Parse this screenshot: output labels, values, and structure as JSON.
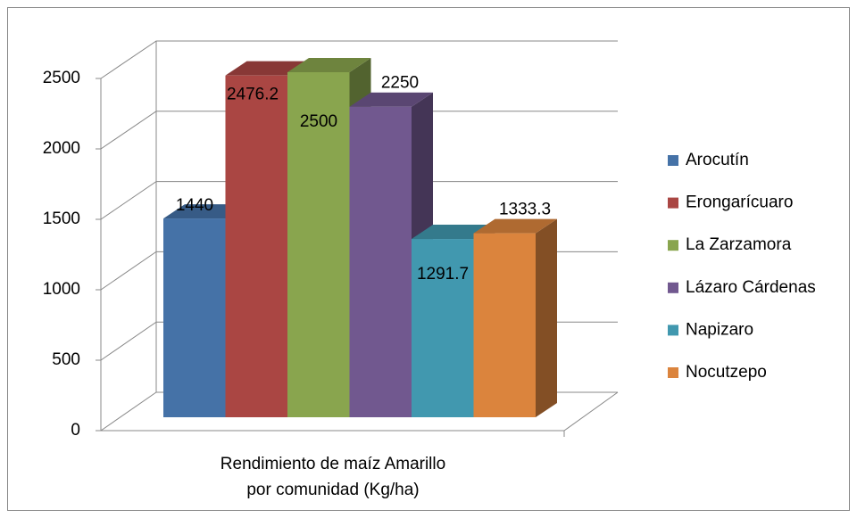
{
  "chart_data": {
    "type": "bar3d",
    "categories": [
      "Rendimiento de maíz Amarillo por comunidad (Kg/ha)"
    ],
    "series": [
      {
        "name": "Arocutín",
        "color": "#4572a7",
        "values": [
          1440
        ]
      },
      {
        "name": "Erongarícuaro",
        "color": "#aa4643",
        "values": [
          2476.2
        ]
      },
      {
        "name": "La Zarzamora",
        "color": "#89a54e",
        "values": [
          2500
        ]
      },
      {
        "name": "Lázaro Cárdenas",
        "color": "#71588f",
        "values": [
          2250
        ]
      },
      {
        "name": "Napizaro",
        "color": "#4198af",
        "values": [
          1291.7
        ]
      },
      {
        "name": "Nocutzepo",
        "color": "#db843d",
        "values": [
          1333.3
        ]
      }
    ],
    "ylim": [
      0,
      2500
    ],
    "yticks": [
      0,
      500,
      1000,
      1500,
      2000,
      2500
    ],
    "grid": true,
    "legend": "right"
  }
}
